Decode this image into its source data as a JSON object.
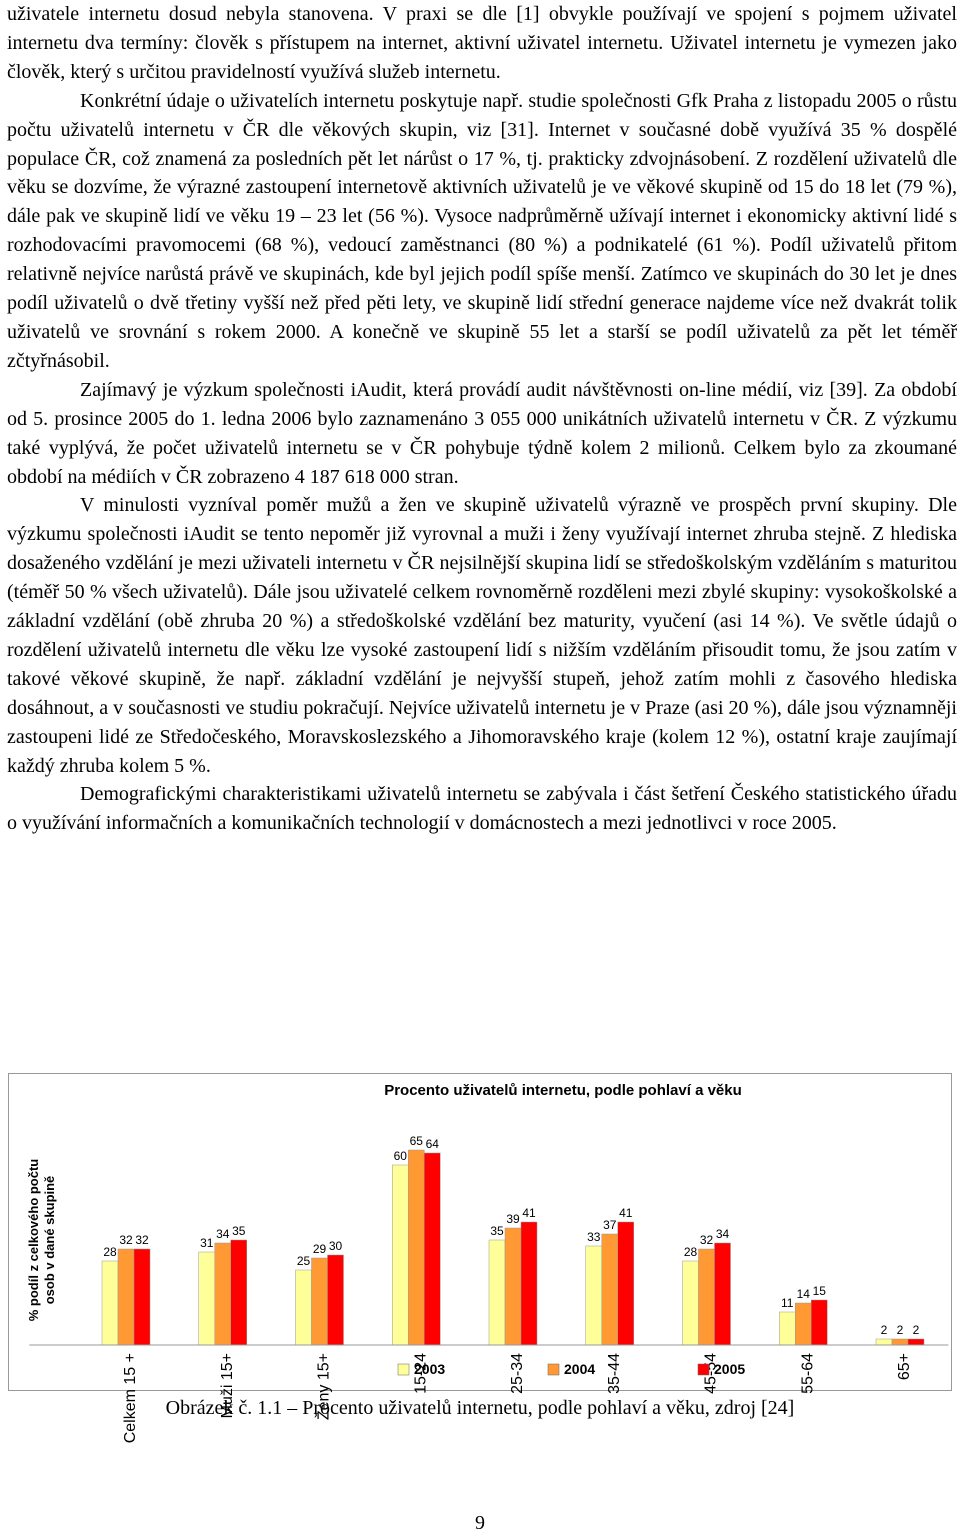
{
  "paragraphs": [
    "uživatele internetu dosud nebyla stanovena. V praxi se dle [1] obvykle používají ve spojení s pojmem uživatel internetu dva termíny: člověk s přístupem na internet, aktivní uživatel internetu. Uživatel internetu je vymezen jako člověk, který s určitou pravidelností využívá služeb internetu.",
    "Konkrétní údaje o uživatelích internetu poskytuje např. studie společnosti Gfk Praha z listopadu 2005 o růstu počtu uživatelů internetu v ČR dle věkových skupin, viz [31]. Internet v současné době využívá 35 % dospělé populace ČR, což znamená za posledních pět let nárůst o 17 %, tj. prakticky zdvojnásobení. Z rozdělení uživatelů dle věku se dozvíme, že výrazné zastoupení internetově aktivních uživatelů je ve věkové skupině od 15 do 18 let (79 %), dále pak ve skupině lidí ve věku 19 – 23 let (56 %). Vysoce nadprůměrně užívají internet i ekonomicky aktivní lidé s rozhodovacími pravomocemi (68 %), vedoucí zaměstnanci (80 %) a podnikatelé (61 %). Podíl uživatelů přitom relativně nejvíce narůstá právě ve skupinách, kde byl jejich podíl spíše menší. Zatímco ve skupinách do 30 let je dnes podíl uživatelů o dvě třetiny vyšší než před pěti lety, ve skupině lidí střední generace najdeme více než dvakrát tolik uživatelů ve srovnání s rokem 2000. A konečně ve skupině 55 let a starší se podíl uživatelů za pět let téměř zčtyřnásobil.",
    "Zajímavý je výzkum společnosti iAudit, která provádí audit návštěvnosti on-line médií, viz [39]. Za období od 5. prosince 2005 do 1. ledna 2006 bylo zaznamenáno 3 055 000 unikátních uživatelů internetu v ČR. Z výzkumu také vyplývá, že počet uživatelů internetu se v ČR pohybuje týdně kolem 2 milionů. Celkem bylo za zkoumané období na médiích v ČR zobrazeno 4 187 618 000 stran.",
    "V minulosti vyzníval poměr mužů a žen ve skupině uživatelů výrazně ve prospěch první skupiny. Dle výzkumu společnosti iAudit se tento nepoměr již vyrovnal a muži i ženy využívají internet zhruba stejně. Z hlediska dosaženého vzdělání je mezi uživateli internetu v ČR nejsilnější skupina lidí se středoškolským vzděláním s maturitou (téměř 50 % všech uživatelů). Dále jsou uživatelé celkem rovnoměrně rozděleni mezi zbylé skupiny: vysokoškolské a základní vzdělání (obě zhruba 20 %) a středoškolské vzdělání bez maturity, vyučení (asi 14 %). Ve světle údajů o rozdělení uživatelů internetu dle věku lze vysoké zastoupení lidí s nižším vzděláním přisoudit tomu, že jsou zatím v takové věkové skupině, že např. základní vzdělání je nejvyšší stupeň, jehož zatím mohli z časového hlediska dosáhnout, a v současnosti ve studiu pokračují. Nejvíce uživatelů internetu je v Praze (asi 20 %), dále jsou významněji zastoupeni lidé ze Středočeského, Moravskoslezského a Jihomoravského kraje (kolem 12 %), ostatní kraje zaujímají každý zhruba kolem 5 %.",
    "Demografickými charakteristikami uživatelů internetu se zabývala i část šetření Českého statistického úřadu o využívání informačních a komunikačních technologií v domácnostech a mezi jednotlivci v roce 2005."
  ],
  "chart_data": {
    "type": "bar",
    "title": "Procento uživatelů internetu, podle pohlaví a věku",
    "ylabel": [
      "% podíl z celkového počtu",
      "osob v dané skupině"
    ],
    "categories": [
      "Celkem 15 +",
      "Muži 15+",
      "Ženy 15+",
      "15-24",
      "25-34",
      "35-44",
      "45-54",
      "55-64",
      "65+"
    ],
    "series": [
      {
        "name": "2003",
        "color": "#ffff99",
        "values": [
          28,
          31,
          25,
          60,
          35,
          33,
          28,
          11,
          2
        ]
      },
      {
        "name": "2004",
        "color": "#ff9933",
        "values": [
          32,
          34,
          29,
          65,
          39,
          37,
          32,
          14,
          2
        ]
      },
      {
        "name": "2005",
        "color": "#ff0000",
        "values": [
          32,
          35,
          30,
          64,
          41,
          41,
          34,
          15,
          2
        ]
      }
    ],
    "ylim": [
      0,
      70
    ],
    "legend": "bottom"
  },
  "caption": "Obrázek č. 1.1 – Procento uživatelů internetu, podle pohlaví a věku, zdroj [24]",
  "page_number": "9"
}
